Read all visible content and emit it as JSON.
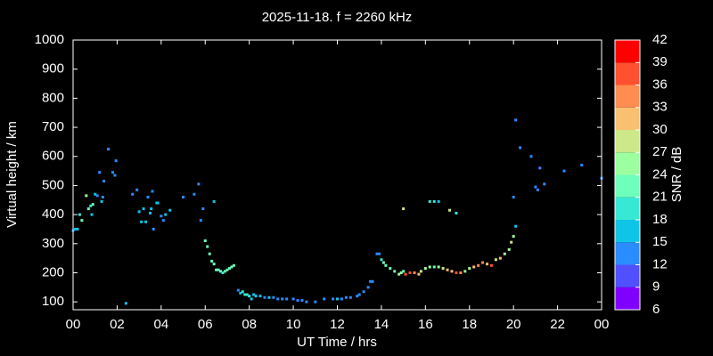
{
  "chart_data": {
    "type": "scatter",
    "title": "2025-11-18. f = 2260 kHz",
    "x_label": "UT Time / hrs",
    "y_label": "Virtual height / km",
    "xlim": [
      0,
      24
    ],
    "ylim": [
      73,
      1000
    ],
    "xticks": [
      {
        "value": 0,
        "label": "00"
      },
      {
        "value": 2,
        "label": "02"
      },
      {
        "value": 4,
        "label": "04"
      },
      {
        "value": 6,
        "label": "06"
      },
      {
        "value": 8,
        "label": "08"
      },
      {
        "value": 10,
        "label": "10"
      },
      12,
      14,
      16,
      18,
      20,
      22,
      {
        "value": 24,
        "label": "00"
      }
    ],
    "yticks": [
      100,
      200,
      300,
      400,
      500,
      600,
      700,
      800,
      900,
      1000
    ],
    "colorbar": {
      "label": "SNR / dB",
      "ticks": [
        6,
        9,
        12,
        15,
        18,
        21,
        24,
        27,
        30,
        33,
        36,
        39,
        42
      ],
      "colors": [
        "#8000ff",
        "#5050ff",
        "#2a8cff",
        "#10c4e8",
        "#38e8d4",
        "#6effbc",
        "#9cffa0",
        "#cce888",
        "#f8c070",
        "#ff8c50",
        "#ff5030",
        "#ff0000"
      ]
    },
    "series": [
      {
        "name": "SNR",
        "x": [
          0.0,
          0.1,
          0.2,
          0.3,
          0.4,
          0.6,
          0.7,
          0.8,
          0.85,
          0.9,
          1.0,
          1.1,
          1.2,
          1.3,
          1.35,
          1.4,
          1.6,
          1.8,
          1.9,
          1.95,
          2.4,
          2.7,
          2.9,
          3.0,
          3.1,
          3.2,
          3.3,
          3.4,
          3.5,
          3.55,
          3.6,
          3.65,
          3.8,
          3.85,
          4.0,
          4.1,
          4.2,
          4.4,
          5.0,
          5.5,
          5.7,
          5.8,
          5.9,
          6.4,
          6.0,
          6.1,
          6.2,
          6.3,
          6.4,
          6.5,
          6.6,
          6.7,
          6.8,
          6.9,
          7.0,
          7.1,
          7.2,
          7.3,
          7.5,
          7.6,
          7.7,
          7.8,
          7.9,
          8.0,
          8.1,
          8.2,
          8.3,
          8.5,
          8.7,
          8.9,
          9.1,
          9.3,
          9.5,
          9.7,
          10.0,
          10.2,
          10.4,
          10.6,
          11.0,
          11.4,
          11.8,
          12.0,
          12.2,
          12.4,
          12.6,
          12.9,
          13.0,
          13.2,
          13.4,
          13.5,
          13.6,
          13.8,
          13.9,
          14.0,
          14.1,
          14.2,
          14.4,
          14.6,
          14.8,
          14.9,
          15.0,
          15.1,
          15.3,
          15.5,
          15.7,
          15.8,
          16.0,
          16.2,
          16.4,
          16.6,
          16.8,
          17.0,
          17.2,
          17.4,
          17.6,
          17.8,
          18.0,
          18.2,
          18.4,
          18.6,
          18.8,
          19.0,
          19.2,
          19.4,
          19.6,
          19.8,
          19.9,
          20.0,
          15.0,
          16.2,
          16.4,
          16.6,
          17.1,
          17.4,
          20.1,
          20.0,
          20.1,
          20.3,
          20.8,
          21.0,
          21.1,
          21.2,
          21.4,
          22.3,
          23.1,
          24.0
        ],
        "values": [
          345,
          350,
          350,
          400,
          380,
          465,
          420,
          430,
          400,
          435,
          470,
          465,
          545,
          445,
          460,
          515,
          625,
          545,
          535,
          585,
          95,
          470,
          485,
          410,
          375,
          420,
          375,
          460,
          405,
          420,
          480,
          350,
          440,
          440,
          395,
          380,
          400,
          415,
          460,
          470,
          505,
          380,
          420,
          445,
          310,
          290,
          265,
          240,
          230,
          210,
          210,
          205,
          200,
          205,
          210,
          215,
          220,
          225,
          140,
          130,
          135,
          125,
          125,
          120,
          110,
          125,
          120,
          120,
          115,
          115,
          115,
          110,
          110,
          110,
          110,
          105,
          105,
          100,
          100,
          110,
          110,
          110,
          110,
          115,
          115,
          120,
          125,
          135,
          150,
          170,
          170,
          265,
          265,
          245,
          235,
          225,
          215,
          205,
          195,
          200,
          205,
          195,
          200,
          200,
          195,
          205,
          215,
          220,
          220,
          220,
          215,
          210,
          205,
          200,
          200,
          205,
          215,
          220,
          225,
          235,
          230,
          225,
          245,
          250,
          265,
          280,
          305,
          325,
          420,
          445,
          445,
          445,
          415,
          405,
          360,
          460,
          725,
          630,
          600,
          495,
          485,
          560,
          505,
          550,
          570,
          525
        ],
        "snr": [
          12,
          15,
          15,
          18,
          21,
          24,
          21,
          18,
          15,
          21,
          15,
          12,
          12,
          15,
          12,
          12,
          12,
          12,
          12,
          12,
          15,
          12,
          12,
          15,
          15,
          15,
          15,
          12,
          15,
          15,
          12,
          12,
          15,
          15,
          12,
          12,
          15,
          15,
          12,
          12,
          12,
          12,
          12,
          15,
          21,
          21,
          21,
          21,
          21,
          21,
          21,
          21,
          18,
          21,
          21,
          21,
          21,
          21,
          12,
          15,
          18,
          18,
          18,
          18,
          15,
          15,
          15,
          15,
          12,
          15,
          12,
          12,
          12,
          12,
          12,
          12,
          12,
          12,
          12,
          12,
          12,
          15,
          12,
          12,
          12,
          12,
          12,
          12,
          12,
          12,
          12,
          12,
          12,
          18,
          21,
          21,
          21,
          21,
          24,
          24,
          21,
          36,
          36,
          33,
          30,
          27,
          24,
          24,
          21,
          24,
          27,
          30,
          30,
          36,
          33,
          24,
          24,
          30,
          33,
          33,
          30,
          36,
          27,
          30,
          24,
          24,
          27,
          24,
          27,
          18,
          18,
          15,
          27,
          18,
          15,
          12,
          12,
          12,
          12,
          12,
          12,
          12,
          12,
          12,
          12,
          12
        ]
      }
    ]
  }
}
